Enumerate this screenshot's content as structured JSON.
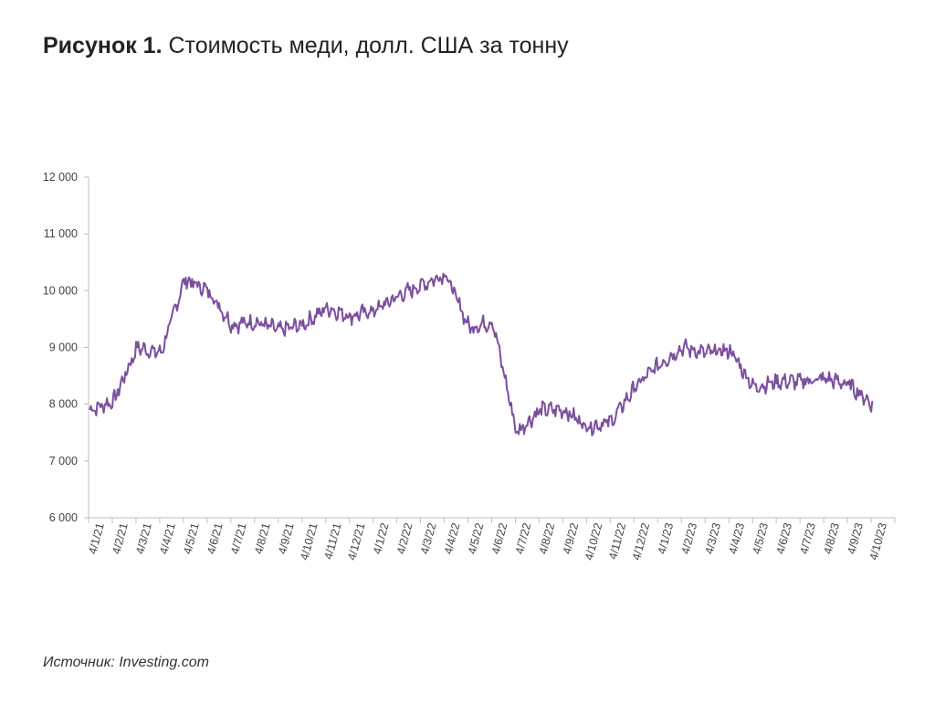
{
  "header": {
    "figure_label": "Рисунок 1.",
    "title": "Стоимость меди, долл. США за тонну"
  },
  "footer": {
    "source_label": "Источник:",
    "source_value": "Investing.com"
  },
  "chart_data": {
    "type": "line",
    "series": [
      {
        "color": "#7B4F9E",
        "x": [
          "2021-01",
          "2021-02",
          "2021-03",
          "2021-04",
          "2021-05",
          "2021-06",
          "2021-07",
          "2021-08",
          "2021-09",
          "2021-10",
          "2021-11",
          "2021-12",
          "2022-01",
          "2022-02",
          "2022-03",
          "2022-04",
          "2022-05",
          "2022-06",
          "2022-07",
          "2022-08",
          "2022-09",
          "2022-10",
          "2022-11",
          "2022-12",
          "2023-01",
          "2023-02",
          "2023-03",
          "2023-04",
          "2023-05",
          "2023-06",
          "2023-07",
          "2023-08",
          "2023-09",
          "2023-10"
        ],
        "values": [
          7900,
          8050,
          9000,
          8900,
          10200,
          10000,
          9400,
          9450,
          9300,
          9400,
          9700,
          9550,
          9650,
          9900,
          10100,
          10300,
          9350,
          9450,
          7500,
          7900,
          7900,
          7600,
          7700,
          8300,
          8700,
          9000,
          8900,
          8950,
          8300,
          8400,
          8400,
          8450,
          8350,
          8000
        ]
      }
    ],
    "x_tick_labels": [
      "4/1/21",
      "4/2/21",
      "4/3/21",
      "4/4/21",
      "4/5/21",
      "4/6/21",
      "4/7/21",
      "4/8/21",
      "4/9/21",
      "4/10/21",
      "4/11/21",
      "4/12/21",
      "4/1/22",
      "4/2/22",
      "4/3/22",
      "4/4/22",
      "4/5/22",
      "4/6/22",
      "4/7/22",
      "4/8/22",
      "4/9/22",
      "4/10/22",
      "4/11/22",
      "4/12/22",
      "4/1/23",
      "4/2/23",
      "4/3/23",
      "4/4/23",
      "4/5/23",
      "4/6/23",
      "4/7/23",
      "4/8/23",
      "4/9/23",
      "4/10/23"
    ],
    "y_tick_labels": [
      "6 000",
      "7 000",
      "8 000",
      "9 000",
      "10 000",
      "11 000",
      "12 000"
    ],
    "y_ticks": [
      6000,
      7000,
      8000,
      9000,
      10000,
      11000,
      12000
    ],
    "ylim": [
      6000,
      12000
    ],
    "grid": false,
    "legend": "none"
  }
}
